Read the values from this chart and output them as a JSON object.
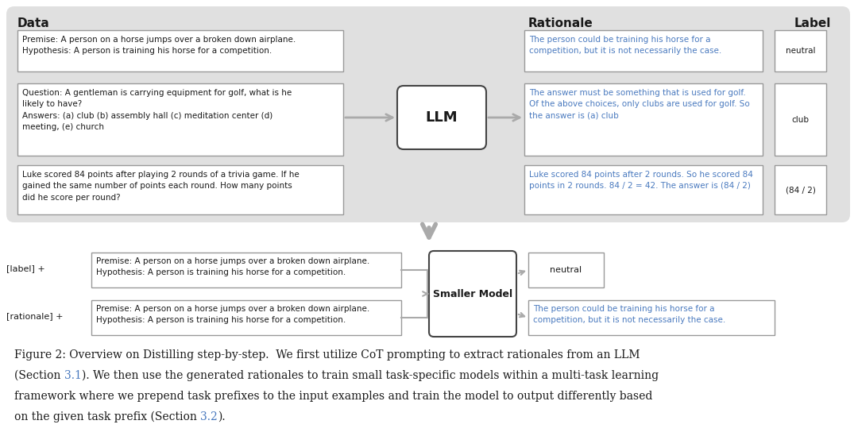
{
  "bg_color": "#e0e0e0",
  "white": "#ffffff",
  "blue_text": "#4a7abf",
  "black_text": "#1a1a1a",
  "gray_arrow": "#aaaaaa",
  "top_panel": {
    "data_label": "Data",
    "rationale_label": "Rationale",
    "label_label": "Label",
    "data_boxes": [
      "Premise: A person on a horse jumps over a broken down airplane.\nHypothesis: A person is training his horse for a competition.",
      "Question: A gentleman is carrying equipment for golf, what is he\nlikely to have?\nAnswers: (a) club (b) assembly hall (c) meditation center (d)\nmeeting, (e) church",
      "Luke scored 84 points after playing 2 rounds of a trivia game. If he\ngained the same number of points each round. How many points\ndid he score per round?"
    ],
    "rationale_boxes": [
      "The person could be training his horse for a\ncompetition, but it is not necessarily the case.",
      "The answer must be something that is used for golf.\nOf the above choices, only clubs are used for golf. So\nthe answer is (a) club",
      "Luke scored 84 points after 2 rounds. So he scored 84\npoints in 2 rounds. 84 / 2 = 42. The answer is (84 / 2)"
    ],
    "label_boxes": [
      "neutral",
      "club",
      "(84 / 2)"
    ],
    "llm_label": "LLM"
  },
  "bottom_panel": {
    "label_prefix": "[label] +",
    "rationale_prefix": "[rationale] +",
    "input_text": "Premise: A person on a horse jumps over a broken down airplane.\nHypothesis: A person is training his horse for a competition.",
    "model_label": "Smaller Model",
    "output_label": "neutral",
    "output_rationale": "The person could be training his horse for a\ncompetition, but it is not necessarily the case."
  },
  "cap_line1": "Figure 2: Overview on Distilling step-by-step.  We first utilize CoT prompting to extract rationales from an LLM",
  "cap_line2_a": "(Section ",
  "cap_line2_b": "3.1",
  "cap_line2_c": "). We then use the generated rationales to train small task-specific models within a multi-task learning",
  "cap_line3": "framework where we prepend task prefixes to the input examples and train the model to output differently based",
  "cap_line4_a": "on the given task prefix (Section ",
  "cap_line4_b": "3.2",
  "cap_line4_c": ")."
}
